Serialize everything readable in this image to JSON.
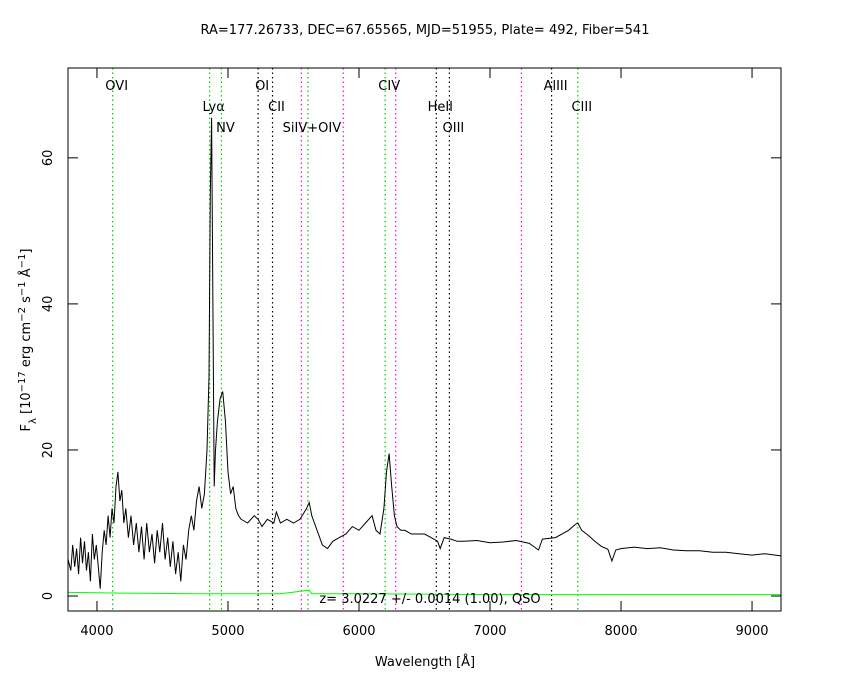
{
  "chart_data": {
    "type": "line",
    "title": "RA=177.26733, DEC=67.65565, MJD=51955, Plate=  492, Fiber=541",
    "xlabel": "Wavelength [Å]",
    "ylabel": [
      "F",
      "λ",
      " [10",
      "−17",
      " erg cm",
      "−2",
      " s",
      "−1",
      " Å",
      "−1",
      "]"
    ],
    "annotation": "z= 3.0227 +/- 0.0014 (1.00), QSO",
    "xlim": [
      3779,
      9221
    ],
    "ylim": [
      -2.05,
      72.3
    ],
    "xticks": [
      4000,
      5000,
      6000,
      7000,
      8000,
      9000
    ],
    "yticks": [
      0,
      20,
      40,
      60
    ],
    "series": [
      {
        "color": "#000000",
        "x": [
          3780,
          3800,
          3815,
          3830,
          3845,
          3860,
          3875,
          3890,
          3905,
          3920,
          3935,
          3950,
          3965,
          3980,
          3995,
          4010,
          4025,
          4040,
          4055,
          4070,
          4085,
          4100,
          4115,
          4130,
          4145,
          4160,
          4175,
          4190,
          4205,
          4220,
          4240,
          4260,
          4280,
          4300,
          4320,
          4340,
          4360,
          4380,
          4400,
          4420,
          4440,
          4460,
          4480,
          4500,
          4520,
          4540,
          4560,
          4580,
          4600,
          4620,
          4640,
          4660,
          4680,
          4700,
          4720,
          4740,
          4760,
          4780,
          4800,
          4820,
          4840,
          4855,
          4865,
          4875,
          4885,
          4895,
          4905,
          4920,
          4940,
          4960,
          4980,
          5000,
          5020,
          5040,
          5060,
          5080,
          5100,
          5150,
          5200,
          5230,
          5260,
          5300,
          5350,
          5370,
          5400,
          5450,
          5500,
          5550,
          5600,
          5620,
          5640,
          5660,
          5700,
          5720,
          5760,
          5800,
          5850,
          5900,
          5950,
          6000,
          6050,
          6100,
          6130,
          6160,
          6190,
          6210,
          6230,
          6250,
          6270,
          6290,
          6320,
          6350,
          6400,
          6450,
          6500,
          6550,
          6600,
          6620,
          6650,
          6700,
          6750,
          6800,
          6900,
          7000,
          7100,
          7200,
          7300,
          7370,
          7400,
          7500,
          7600,
          7650,
          7670,
          7700,
          7750,
          7800,
          7850,
          7900,
          7930,
          7960,
          8000,
          8100,
          8200,
          8300,
          8400,
          8500,
          8600,
          8700,
          8800,
          8900,
          9000,
          9100,
          9220
        ],
        "values": [
          5,
          3.5,
          7,
          4,
          6.5,
          3,
          8,
          4.5,
          7.5,
          3.5,
          6,
          2,
          8.5,
          5,
          7,
          4,
          1,
          6,
          9,
          7,
          11,
          8,
          12,
          10,
          15,
          17,
          13,
          14.5,
          10,
          12,
          8,
          11,
          7,
          10,
          6,
          9.5,
          5,
          10,
          6,
          8.5,
          4.5,
          9,
          6,
          10,
          5,
          8,
          4,
          7.5,
          3,
          6,
          2,
          7,
          5,
          9,
          11,
          9,
          13,
          15,
          12,
          14,
          20,
          30,
          55,
          65.5,
          40,
          15,
          20,
          24,
          27,
          28,
          24,
          17,
          14,
          15,
          12,
          11,
          10.5,
          10,
          11,
          10.5,
          9.5,
          10.5,
          10,
          11.5,
          10,
          10.5,
          10,
          10.5,
          12,
          12.8,
          11,
          10,
          8,
          7,
          6.5,
          7.5,
          8,
          8.5,
          9.5,
          9,
          10,
          11,
          9,
          8.5,
          12,
          17,
          19.5,
          15,
          11,
          9.5,
          9,
          9,
          8.5,
          8.5,
          8.5,
          8,
          7.5,
          6.5,
          8,
          7.8,
          7.5,
          7.5,
          7.6,
          7.3,
          7.4,
          7.6,
          7.2,
          6.3,
          7.8,
          8,
          9,
          9.8,
          10,
          9,
          8.3,
          7.5,
          6.8,
          6.4,
          4.8,
          6.3,
          6.5,
          6.7,
          6.5,
          6.6,
          6.3,
          6.2,
          6.2,
          6,
          6,
          5.8,
          5.6,
          5.8,
          5.5
        ]
      },
      {
        "color": "#00ff00",
        "x": [
          3780,
          4200,
          4800,
          5400,
          5620,
          5640,
          6000,
          7000,
          8000,
          9220
        ],
        "values": [
          0.5,
          0.4,
          0.3,
          0.3,
          0.8,
          0.3,
          0.3,
          0.2,
          0.2,
          0.2
        ]
      }
    ],
    "lines": [
      {
        "label": "OVI",
        "x": 4120,
        "color": "#00cc00"
      },
      {
        "label": "Lyα",
        "x": 4860,
        "color": "#00cc00"
      },
      {
        "label": "NV",
        "x": 4950,
        "color": "#00cc00"
      },
      {
        "label": "OI",
        "x": 5230,
        "color": "#000000"
      },
      {
        "label": "CII",
        "x": 5340,
        "color": "#000000"
      },
      {
        "label": null,
        "x": 5560,
        "color": "#ff00ff"
      },
      {
        "label": "SiIV+OIV",
        "x": 5610,
        "color": "#00cc00"
      },
      {
        "label": null,
        "x": 5880,
        "color": "#ff00ff"
      },
      {
        "label": "CIV",
        "x": 6200,
        "color": "#00cc00"
      },
      {
        "label": null,
        "x": 6280,
        "color": "#ff00ff"
      },
      {
        "label": "HeII",
        "x": 6590,
        "color": "#000000"
      },
      {
        "label": "OIII",
        "x": 6690,
        "color": "#000000"
      },
      {
        "label": null,
        "x": 7240,
        "color": "#ff00ff"
      },
      {
        "label": "AlIII",
        "x": 7470,
        "color": "#000000"
      },
      {
        "label": "CIII",
        "x": 7670,
        "color": "#00cc00"
      }
    ]
  }
}
